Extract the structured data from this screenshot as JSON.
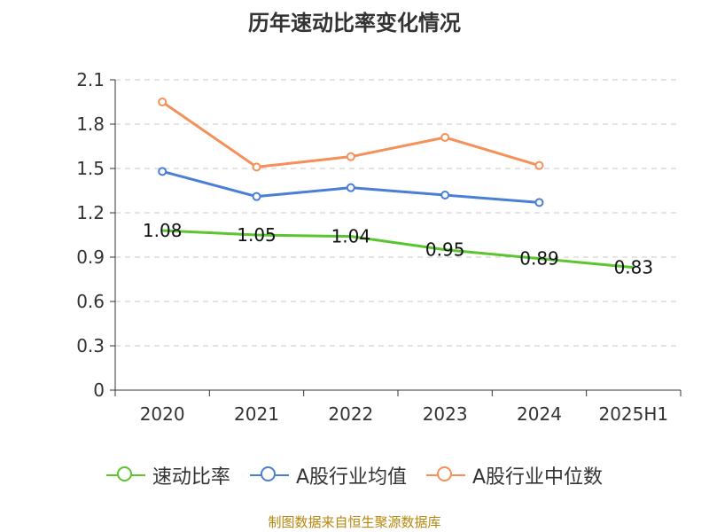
{
  "chart_data": {
    "type": "line",
    "title": "历年速动比率变化情况",
    "categories": [
      "2020",
      "2021",
      "2022",
      "2023",
      "2024",
      "2025H1"
    ],
    "ylim": [
      0,
      2.1
    ],
    "yticks": [
      "0",
      "0.3",
      "0.6",
      "0.9",
      "1.2",
      "1.5",
      "1.8",
      "2.1"
    ],
    "grid": true,
    "legend_position": "bottom",
    "series": [
      {
        "name": "速动比率",
        "color": "#5cc42f",
        "values": [
          1.08,
          1.05,
          1.04,
          0.95,
          0.89,
          0.83
        ],
        "labels": [
          "1.08",
          "1.05",
          "1.04",
          "0.95",
          "0.89",
          "0.83"
        ],
        "markers": false
      },
      {
        "name": "A股行业均值",
        "color": "#4a7fd6",
        "values": [
          1.48,
          1.31,
          1.37,
          1.32,
          1.27,
          null
        ],
        "markers": true
      },
      {
        "name": "A股行业中位数",
        "color": "#f5905a",
        "values": [
          1.95,
          1.51,
          1.58,
          1.71,
          1.52,
          null
        ],
        "markers": true
      }
    ]
  },
  "source": "制图数据来自恒生聚源数据库"
}
